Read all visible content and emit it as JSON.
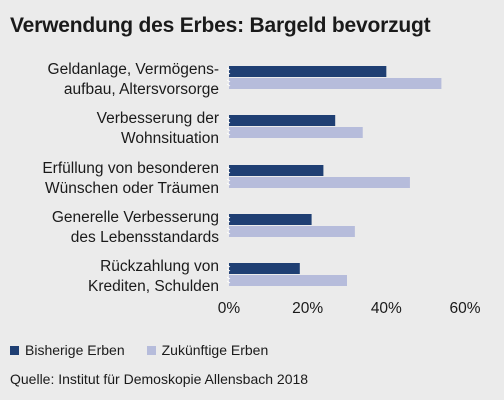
{
  "title": "Verwendung des Erbes: Bargeld bevorzugt",
  "source": "Quelle: Institut für Demoskopie Allensbach 2018",
  "colors": {
    "background": "#ebebeb",
    "series_dark": "#1f3f73",
    "series_light": "#b6bcdb",
    "text": "#1a1a1a"
  },
  "chart_data": {
    "type": "bar",
    "orientation": "horizontal",
    "categories": [
      [
        "Geldanlage, Vermögens-",
        "aufbau, Altersvorsorge"
      ],
      [
        "Verbesserung der",
        "Wohnsituation"
      ],
      [
        "Erfüllung von besonderen",
        "Wünschen oder Träumen"
      ],
      [
        "Generelle Verbesserung",
        "des Lebensstandards"
      ],
      [
        "Rückzahlung von",
        "Krediten, Schulden"
      ]
    ],
    "series": [
      {
        "name": "Bisherige Erben",
        "color": "#1f3f73",
        "values": [
          40,
          27,
          24,
          21,
          18
        ]
      },
      {
        "name": "Zukünftige Erben",
        "color": "#b6bcdb",
        "values": [
          54,
          34,
          46,
          32,
          30
        ]
      }
    ],
    "xlim": [
      0,
      60
    ],
    "ticks": [
      "0%",
      "20%",
      "40%",
      "60%"
    ],
    "tick_values": [
      0,
      20,
      40,
      60
    ],
    "grid": false,
    "legend_position": "bottom-left"
  }
}
